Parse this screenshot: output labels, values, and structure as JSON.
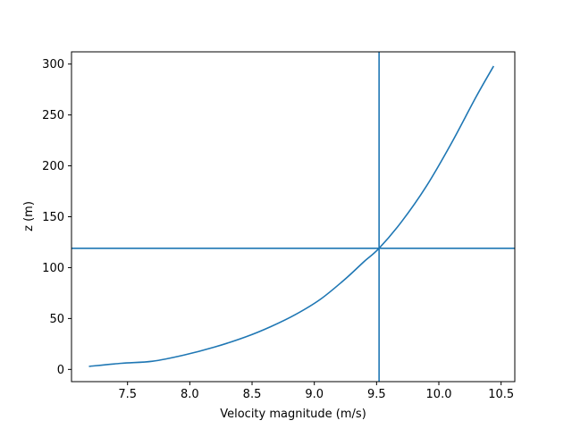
{
  "chart_data": {
    "type": "line",
    "title": "",
    "xlabel": "Velocity magnitude (m/s)",
    "ylabel": "z (m)",
    "xlim": [
      7.05,
      10.61
    ],
    "ylim": [
      -12,
      312
    ],
    "xticks": [
      7.5,
      8.0,
      8.5,
      9.0,
      9.5,
      10.0,
      10.5
    ],
    "yticks": [
      0,
      50,
      100,
      150,
      200,
      250,
      300
    ],
    "xtick_labels": [
      "7.5",
      "8.0",
      "8.5",
      "9.0",
      "9.5",
      "10.0",
      "10.5"
    ],
    "ytick_labels": [
      "0",
      "50",
      "100",
      "150",
      "200",
      "250",
      "300"
    ],
    "grid": false,
    "legend": "none",
    "line_color": "#1f77b4",
    "series": [
      {
        "x": [
          7.19,
          7.45,
          7.7,
          7.95,
          8.2,
          8.45,
          8.65,
          8.85,
          9.05,
          9.25,
          9.4,
          9.52,
          9.7,
          9.9,
          10.1,
          10.3,
          10.44
        ],
        "y": [
          3,
          6,
          8,
          14,
          22,
          32,
          42,
          54,
          69,
          89,
          106,
          119,
          145,
          180,
          222,
          268,
          298
        ]
      }
    ],
    "reference_lines": {
      "vertical_x": 9.52,
      "horizontal_y": 119
    }
  }
}
